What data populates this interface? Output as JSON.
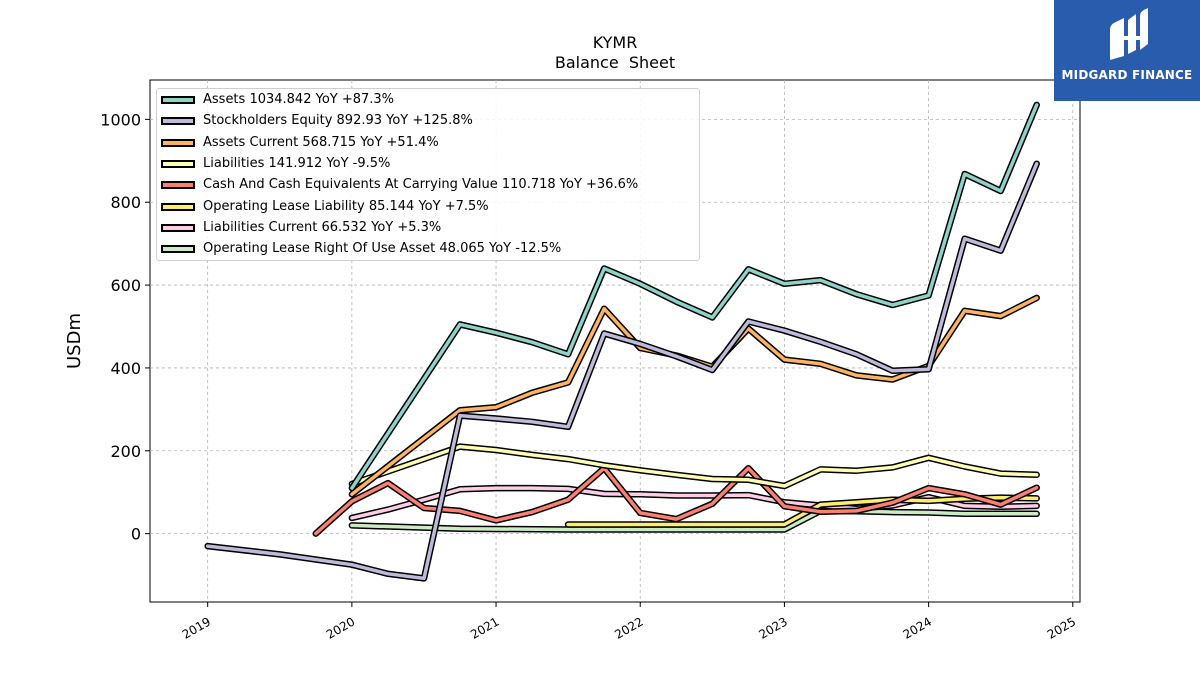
{
  "chart_data": {
    "type": "line",
    "title": "KYMR",
    "subtitle": "Balance  Sheet",
    "ylabel": "USDm",
    "xlabel": "",
    "ylim": [
      -165,
      1095
    ],
    "xlim": [
      2018.6,
      2025.05
    ],
    "yticks": [
      0,
      200,
      400,
      600,
      800,
      1000
    ],
    "xticks": [
      2019,
      2020,
      2021,
      2022,
      2023,
      2024,
      2025
    ],
    "grid": true,
    "legend_position": "top-left",
    "series": [
      {
        "name": "Assets  1034.842 YoY +87.3%",
        "color": "#8dd3c7",
        "points": [
          [
            2020.0,
            110
          ],
          [
            2020.75,
            505
          ],
          [
            2021.0,
            485
          ],
          [
            2021.25,
            462
          ],
          [
            2021.5,
            433
          ],
          [
            2021.75,
            640
          ],
          [
            2022.0,
            603
          ],
          [
            2022.25,
            560
          ],
          [
            2022.5,
            522
          ],
          [
            2022.75,
            638
          ],
          [
            2023.0,
            603
          ],
          [
            2023.25,
            612
          ],
          [
            2023.5,
            578
          ],
          [
            2023.75,
            552
          ],
          [
            2024.0,
            575
          ],
          [
            2024.25,
            868
          ],
          [
            2024.5,
            827
          ],
          [
            2024.75,
            1035
          ]
        ]
      },
      {
        "name": "Stockholders Equity  892.93 YoY +125.8%",
        "color": "#bebada",
        "points": [
          [
            2019.0,
            -30
          ],
          [
            2019.5,
            -50
          ],
          [
            2020.0,
            -75
          ],
          [
            2020.25,
            -97
          ],
          [
            2020.5,
            -108
          ],
          [
            2020.75,
            285
          ],
          [
            2021.0,
            278
          ],
          [
            2021.25,
            270
          ],
          [
            2021.5,
            258
          ],
          [
            2021.75,
            483
          ],
          [
            2022.0,
            458
          ],
          [
            2022.25,
            428
          ],
          [
            2022.5,
            395
          ],
          [
            2022.75,
            512
          ],
          [
            2023.0,
            490
          ],
          [
            2023.25,
            463
          ],
          [
            2023.5,
            433
          ],
          [
            2023.75,
            393
          ],
          [
            2024.0,
            397
          ],
          [
            2024.25,
            712
          ],
          [
            2024.5,
            683
          ],
          [
            2024.75,
            893
          ]
        ]
      },
      {
        "name": "Assets Current  568.715 YoY +51.4%",
        "color": "#fdb462",
        "points": [
          [
            2020.0,
            95
          ],
          [
            2020.75,
            298
          ],
          [
            2021.0,
            305
          ],
          [
            2021.25,
            340
          ],
          [
            2021.5,
            365
          ],
          [
            2021.75,
            543
          ],
          [
            2022.0,
            448
          ],
          [
            2022.25,
            430
          ],
          [
            2022.5,
            403
          ],
          [
            2022.75,
            495
          ],
          [
            2023.0,
            420
          ],
          [
            2023.25,
            410
          ],
          [
            2023.5,
            382
          ],
          [
            2023.75,
            372
          ],
          [
            2024.0,
            405
          ],
          [
            2024.25,
            538
          ],
          [
            2024.5,
            525
          ],
          [
            2024.75,
            569
          ]
        ]
      },
      {
        "name": "Liabilities  141.912 YoY -9.5%",
        "color": "#ffffb3",
        "points": [
          [
            2020.0,
            120
          ],
          [
            2020.75,
            210
          ],
          [
            2021.0,
            202
          ],
          [
            2021.25,
            190
          ],
          [
            2021.5,
            180
          ],
          [
            2021.75,
            165
          ],
          [
            2022.0,
            153
          ],
          [
            2022.25,
            142
          ],
          [
            2022.5,
            132
          ],
          [
            2022.75,
            130
          ],
          [
            2023.0,
            115
          ],
          [
            2023.25,
            155
          ],
          [
            2023.5,
            152
          ],
          [
            2023.75,
            160
          ],
          [
            2024.0,
            183
          ],
          [
            2024.25,
            162
          ],
          [
            2024.5,
            145
          ],
          [
            2024.75,
            142
          ]
        ]
      },
      {
        "name": "Cash And Cash Equivalents At Carrying Value  110.718 YoY +36.6%",
        "color": "#fb8072",
        "points": [
          [
            2019.75,
            0
          ],
          [
            2020.0,
            78
          ],
          [
            2020.25,
            122
          ],
          [
            2020.5,
            62
          ],
          [
            2020.75,
            55
          ],
          [
            2021.0,
            32
          ],
          [
            2021.25,
            52
          ],
          [
            2021.5,
            82
          ],
          [
            2021.75,
            158
          ],
          [
            2022.0,
            50
          ],
          [
            2022.25,
            35
          ],
          [
            2022.5,
            72
          ],
          [
            2022.75,
            158
          ],
          [
            2023.0,
            66
          ],
          [
            2023.25,
            53
          ],
          [
            2023.5,
            55
          ],
          [
            2023.75,
            75
          ],
          [
            2024.0,
            110
          ],
          [
            2024.25,
            95
          ],
          [
            2024.5,
            70
          ],
          [
            2024.75,
            111
          ]
        ]
      },
      {
        "name": "Operating Lease Liability  85.144 YoY +7.5%",
        "color": "#ffed6f",
        "points": [
          [
            2021.5,
            22
          ],
          [
            2023.0,
            22
          ],
          [
            2023.25,
            70
          ],
          [
            2023.5,
            76
          ],
          [
            2023.75,
            82
          ],
          [
            2024.0,
            79
          ],
          [
            2024.25,
            84
          ],
          [
            2024.5,
            87
          ],
          [
            2024.75,
            85
          ]
        ]
      },
      {
        "name": "Liabilities Current  66.532 YoY +5.3%",
        "color": "#fccde5",
        "points": [
          [
            2020.0,
            38
          ],
          [
            2020.25,
            58
          ],
          [
            2020.5,
            82
          ],
          [
            2020.75,
            107
          ],
          [
            2021.0,
            110
          ],
          [
            2021.25,
            110
          ],
          [
            2021.5,
            108
          ],
          [
            2021.75,
            96
          ],
          [
            2022.0,
            95
          ],
          [
            2022.25,
            92
          ],
          [
            2022.5,
            92
          ],
          [
            2022.75,
            93
          ],
          [
            2023.0,
            76
          ],
          [
            2023.25,
            68
          ],
          [
            2023.5,
            60
          ],
          [
            2023.75,
            68
          ],
          [
            2024.0,
            88
          ],
          [
            2024.25,
            67
          ],
          [
            2024.5,
            65
          ],
          [
            2024.75,
            67
          ]
        ]
      },
      {
        "name": "Operating Lease Right Of Use Asset  48.065 YoY -12.5%",
        "color": "#ccebc5",
        "points": [
          [
            2020.0,
            20
          ],
          [
            2020.75,
            12
          ],
          [
            2021.5,
            10
          ],
          [
            2022.75,
            10
          ],
          [
            2023.0,
            10
          ],
          [
            2023.25,
            55
          ],
          [
            2023.5,
            54
          ],
          [
            2023.75,
            52
          ],
          [
            2024.0,
            51
          ],
          [
            2024.25,
            48
          ],
          [
            2024.5,
            48
          ],
          [
            2024.75,
            48
          ]
        ]
      }
    ]
  },
  "brand": {
    "name": "MIDGARD FINANCE",
    "background": "#2a5cad",
    "icon": "midgard-logo-icon"
  }
}
